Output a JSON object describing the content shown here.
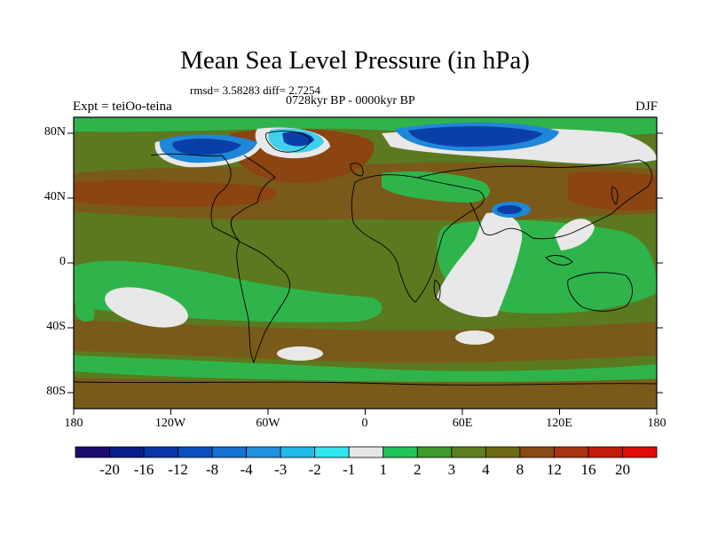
{
  "title": "Mean Sea Level Pressure (in hPa)",
  "stats": "rmsd= 3.58283 diff= 2.7254",
  "period": "0728kyr BP - 0000kyr BP",
  "experiment": "Expt = teiOo-teina",
  "season": "DJF",
  "lat_labels": [
    "80N",
    "40N",
    "0",
    "40S",
    "80S"
  ],
  "lon_labels": [
    "180",
    "120W",
    "60W",
    "0",
    "60E",
    "120E",
    "180"
  ],
  "colorbar": {
    "levels": [
      "-20",
      "-16",
      "-12",
      "-8",
      "-4",
      "-3",
      "-2",
      "-1",
      "1",
      "2",
      "3",
      "4",
      "8",
      "12",
      "16",
      "20"
    ],
    "colors": [
      "#1b0a6e",
      "#081c8a",
      "#0a34a8",
      "#0a4fbf",
      "#1470d2",
      "#1f92e0",
      "#21b9ea",
      "#2fe6f0",
      "#e6e6e6",
      "#22c35a",
      "#3e9a2a",
      "#5d7e1e",
      "#6e6a12",
      "#8a4a14",
      "#a83410",
      "#c41a0c",
      "#e00c08"
    ]
  },
  "palette": {
    "green": "#2fb44b",
    "olive": "#5b7a20",
    "brown": "#7a5a1a",
    "rust": "#8b4412",
    "white": "#e8e8e8",
    "blue_dark": "#0a3fa8",
    "blue_mid": "#1f86d8",
    "cyan": "#3ed0ee"
  }
}
